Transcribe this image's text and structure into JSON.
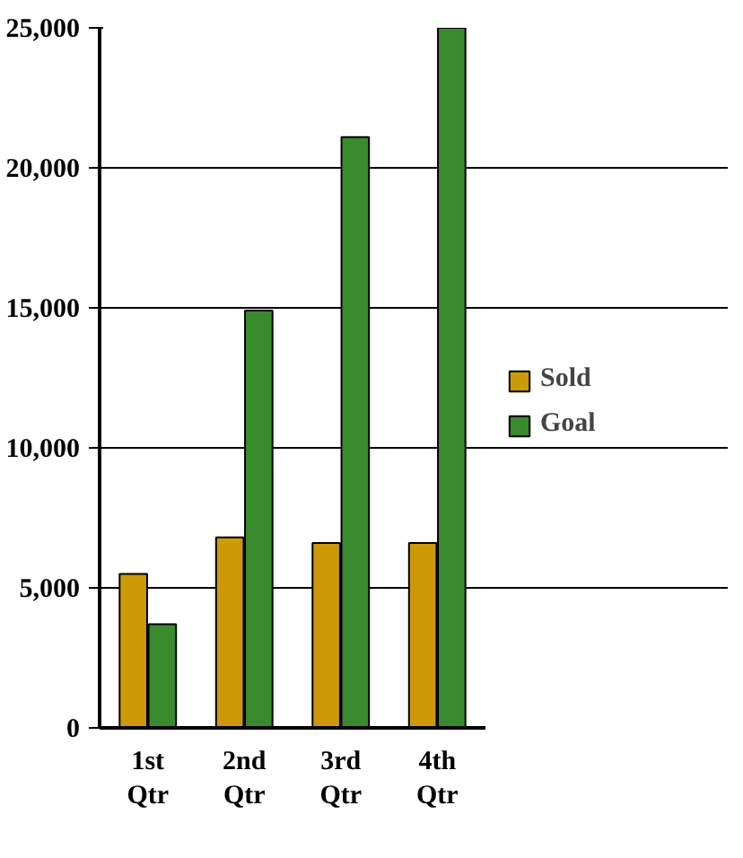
{
  "chart_data": {
    "type": "bar",
    "categories": [
      "1st Qtr",
      "2nd Qtr",
      "3rd Qtr",
      "4th Qtr"
    ],
    "series": [
      {
        "name": "Sold",
        "color": "#cc9a06",
        "values": [
          5500,
          6800,
          6600,
          6600
        ]
      },
      {
        "name": "Goal",
        "color": "#3a8a2e",
        "values": [
          3700,
          14900,
          21100,
          25000
        ]
      }
    ],
    "ylim": [
      0,
      25000
    ],
    "yticks": [
      {
        "value": 0,
        "label": "0"
      },
      {
        "value": 5000,
        "label": "5,000"
      },
      {
        "value": 10000,
        "label": "10,000"
      },
      {
        "value": 15000,
        "label": "15,000"
      },
      {
        "value": 20000,
        "label": "20,000"
      },
      {
        "value": 25000,
        "label": "25,000"
      }
    ],
    "grid": "y",
    "legend": "right"
  }
}
